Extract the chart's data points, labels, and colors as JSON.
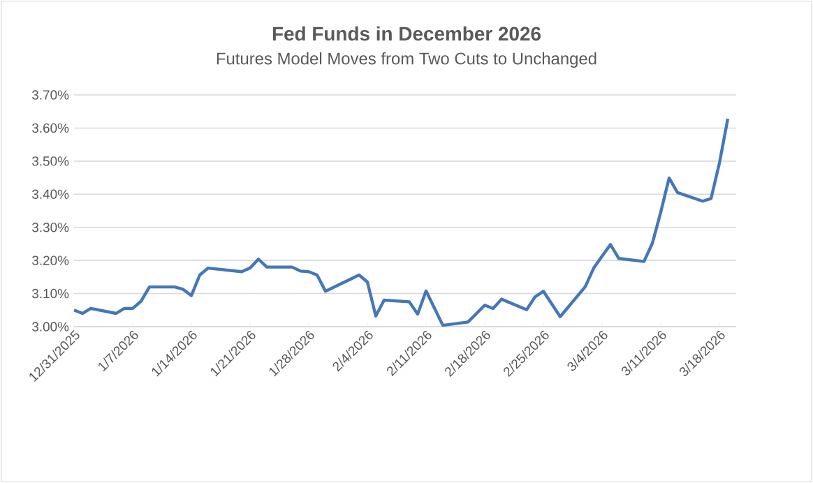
{
  "chart_data": {
    "type": "line",
    "title": "Fed Funds in December 2026",
    "subtitle": "Futures Model Moves from Two Cuts to Unchanged",
    "x": [
      "2025-12-31",
      "2026-01-01",
      "2026-01-02",
      "2026-01-05",
      "2026-01-06",
      "2026-01-07",
      "2026-01-08",
      "2026-01-09",
      "2026-01-12",
      "2026-01-13",
      "2026-01-14",
      "2026-01-15",
      "2026-01-16",
      "2026-01-20",
      "2026-01-21",
      "2026-01-22",
      "2026-01-23",
      "2026-01-26",
      "2026-01-27",
      "2026-01-28",
      "2026-01-29",
      "2026-01-30",
      "2026-02-03",
      "2026-02-04",
      "2026-02-05",
      "2026-02-06",
      "2026-02-09",
      "2026-02-10",
      "2026-02-11",
      "2026-02-13",
      "2026-02-16",
      "2026-02-18",
      "2026-02-19",
      "2026-02-20",
      "2026-02-23",
      "2026-02-24",
      "2026-02-25",
      "2026-02-27",
      "2026-03-02",
      "2026-03-03",
      "2026-03-04",
      "2026-03-05",
      "2026-03-06",
      "2026-03-09",
      "2026-03-10",
      "2026-03-11",
      "2026-03-12",
      "2026-03-13",
      "2026-03-16",
      "2026-03-17",
      "2026-03-18",
      "2026-03-19"
    ],
    "series": [
      {
        "color": "#4577b8",
        "values": [
          3.05,
          3.04,
          3.055,
          3.04,
          3.055,
          3.055,
          3.077,
          3.12,
          3.12,
          3.113,
          3.094,
          3.156,
          3.177,
          3.166,
          3.177,
          3.204,
          3.18,
          3.18,
          3.168,
          3.166,
          3.156,
          3.107,
          3.156,
          3.135,
          3.032,
          3.08,
          3.075,
          3.038,
          3.108,
          3.004,
          3.014,
          3.065,
          3.055,
          3.083,
          3.051,
          3.09,
          3.107,
          3.03,
          3.121,
          3.177,
          3.213,
          3.248,
          3.206,
          3.197,
          3.252,
          3.346,
          3.449,
          3.405,
          3.379,
          3.387,
          3.494,
          3.628
        ]
      }
    ],
    "xlim": [
      "2025-12-31",
      "2026-03-20"
    ],
    "xticks": [
      {
        "value": "2025-12-31",
        "label": "12/31/2025"
      },
      {
        "value": "2026-01-07",
        "label": "1/7/2026"
      },
      {
        "value": "2026-01-14",
        "label": "1/14/2026"
      },
      {
        "value": "2026-01-21",
        "label": "1/21/2026"
      },
      {
        "value": "2026-01-28",
        "label": "1/28/2026"
      },
      {
        "value": "2026-02-04",
        "label": "2/4/2026"
      },
      {
        "value": "2026-02-11",
        "label": "2/11/2026"
      },
      {
        "value": "2026-02-18",
        "label": "2/18/2026"
      },
      {
        "value": "2026-02-25",
        "label": "2/25/2026"
      },
      {
        "value": "2026-03-04",
        "label": "3/4/2026"
      },
      {
        "value": "2026-03-11",
        "label": "3/11/2026"
      },
      {
        "value": "2026-03-18",
        "label": "3/18/2026"
      }
    ],
    "ylim": [
      3.0,
      3.7
    ],
    "yticks": [
      {
        "value": 3.0,
        "label": "3.00%"
      },
      {
        "value": 3.1,
        "label": "3.10%"
      },
      {
        "value": 3.2,
        "label": "3.20%"
      },
      {
        "value": 3.3,
        "label": "3.30%"
      },
      {
        "value": 3.4,
        "label": "3.40%"
      },
      {
        "value": 3.5,
        "label": "3.50%"
      },
      {
        "value": 3.6,
        "label": "3.60%"
      },
      {
        "value": 3.7,
        "label": "3.70%"
      }
    ],
    "grid": "y",
    "marker": "none",
    "line_style": "solid"
  }
}
